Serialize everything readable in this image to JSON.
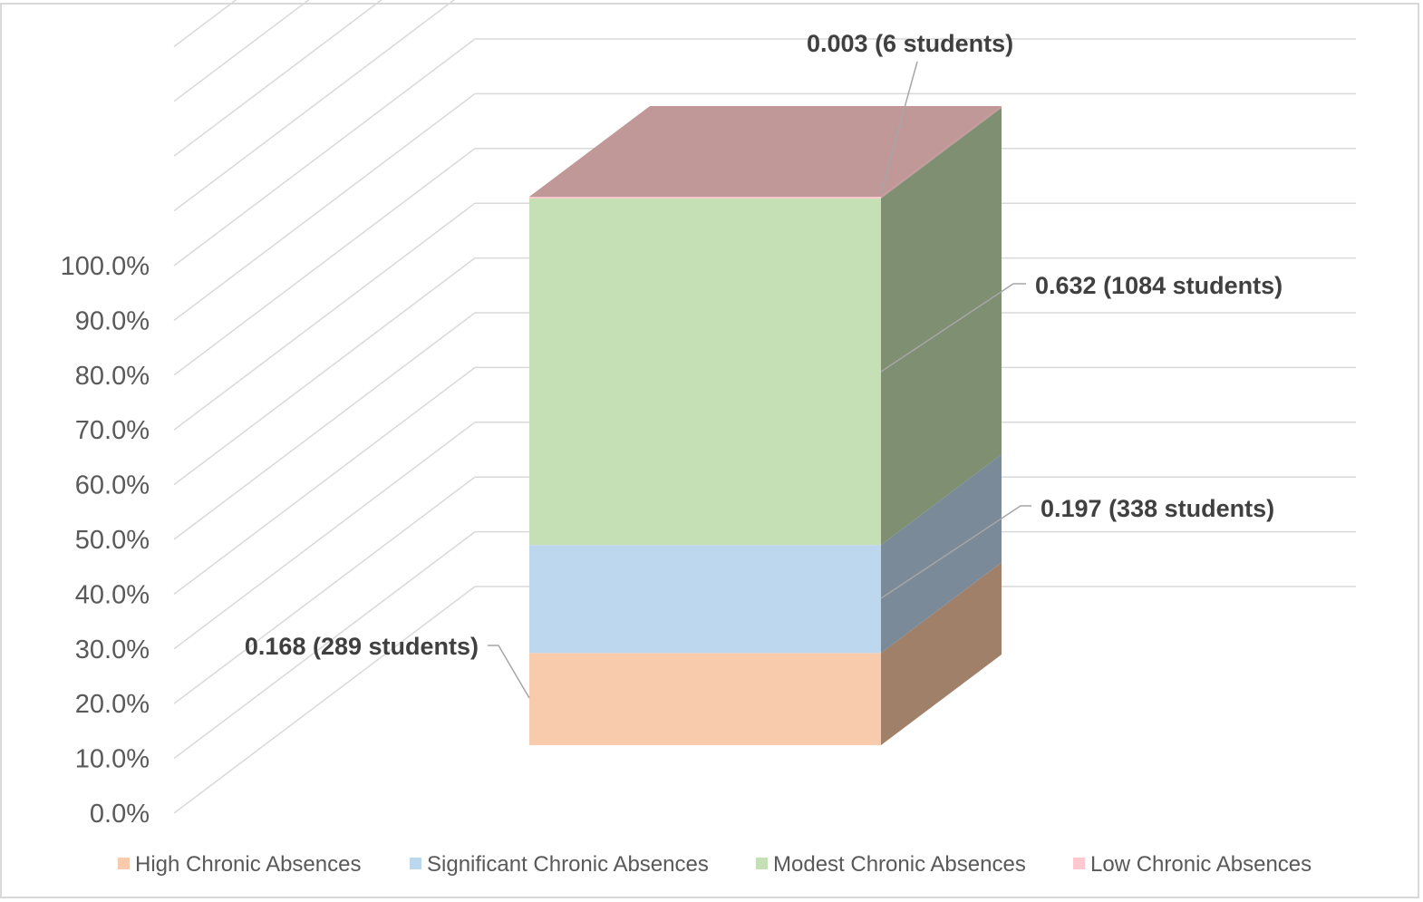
{
  "chart_data": {
    "type": "bar",
    "stacked": true,
    "three_d": true,
    "categories": [
      ""
    ],
    "series": [
      {
        "name": "High Chronic Absences",
        "values": [
          0.168
        ],
        "label": "0.168 (289 students)",
        "color": "#f8cbad",
        "side_color": "#a08069"
      },
      {
        "name": "Significant Chronic Absences",
        "values": [
          0.197
        ],
        "label": "0.197 (338 students)",
        "color": "#bdd7ee",
        "side_color": "#7a8a99"
      },
      {
        "name": "Modest Chronic Absences",
        "values": [
          0.632
        ],
        "label": "0.632 (1084 students)",
        "color": "#c5e0b4",
        "side_color": "#7f8f72"
      },
      {
        "name": "Low Chronic Absences",
        "values": [
          0.003
        ],
        "label": "0.003 (6 students)",
        "color": "#ffc7ce",
        "side_color": "#c09898"
      }
    ],
    "y_ticks": [
      "0.0%",
      "10.0%",
      "20.0%",
      "30.0%",
      "40.0%",
      "50.0%",
      "60.0%",
      "70.0%",
      "80.0%",
      "90.0%",
      "100.0%"
    ],
    "ylim": [
      0,
      1
    ],
    "grid": true,
    "legend_position": "bottom"
  }
}
